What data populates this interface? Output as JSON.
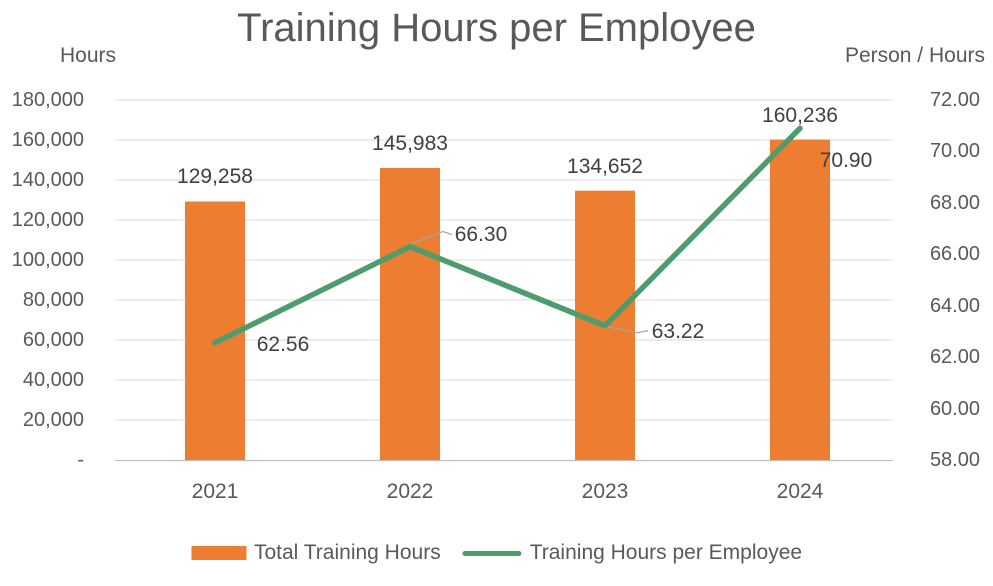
{
  "title": "Training Hours per Employee",
  "chart_data": {
    "type": "combo",
    "title": "Training Hours per Employee",
    "categories": [
      "2021",
      "2022",
      "2023",
      "2024"
    ],
    "series": [
      {
        "name": "Total Training Hours",
        "type": "bar",
        "axis": "left",
        "color": "#ED7D31",
        "values": [
          129258,
          145983,
          134652,
          160236
        ],
        "data_labels": [
          "129,258",
          "145,983",
          "134,652",
          "160,236"
        ]
      },
      {
        "name": "Training Hours per Employee",
        "type": "line",
        "axis": "right",
        "color": "#4E9B6D",
        "values": [
          62.56,
          66.3,
          63.22,
          70.9
        ],
        "data_labels": [
          "62.56",
          "66.30",
          "63.22",
          "70.90"
        ]
      }
    ],
    "left_axis": {
      "title": "Hours",
      "min": 0,
      "max": 180000,
      "step": 20000,
      "ticks": [
        "180,000",
        "160,000",
        "140,000",
        "120,000",
        "100,000",
        "80,000",
        "60,000",
        "40,000",
        "20,000",
        "-"
      ]
    },
    "right_axis": {
      "title": "Person / Hours",
      "min": 58,
      "max": 72,
      "step": 2,
      "ticks": [
        "72.00",
        "70.00",
        "68.00",
        "66.00",
        "64.00",
        "62.00",
        "60.00",
        "58.00"
      ]
    },
    "grid": true,
    "legend_position": "bottom"
  },
  "colors": {
    "bar": "#ED7D31",
    "line": "#4E9B6D",
    "grid": "#D9D9D9",
    "axis_line": "#BFBFBF",
    "leader": "#A6A6A6",
    "title_text": "#595959",
    "tick_text": "#595959",
    "data_label_text": "#404040"
  }
}
